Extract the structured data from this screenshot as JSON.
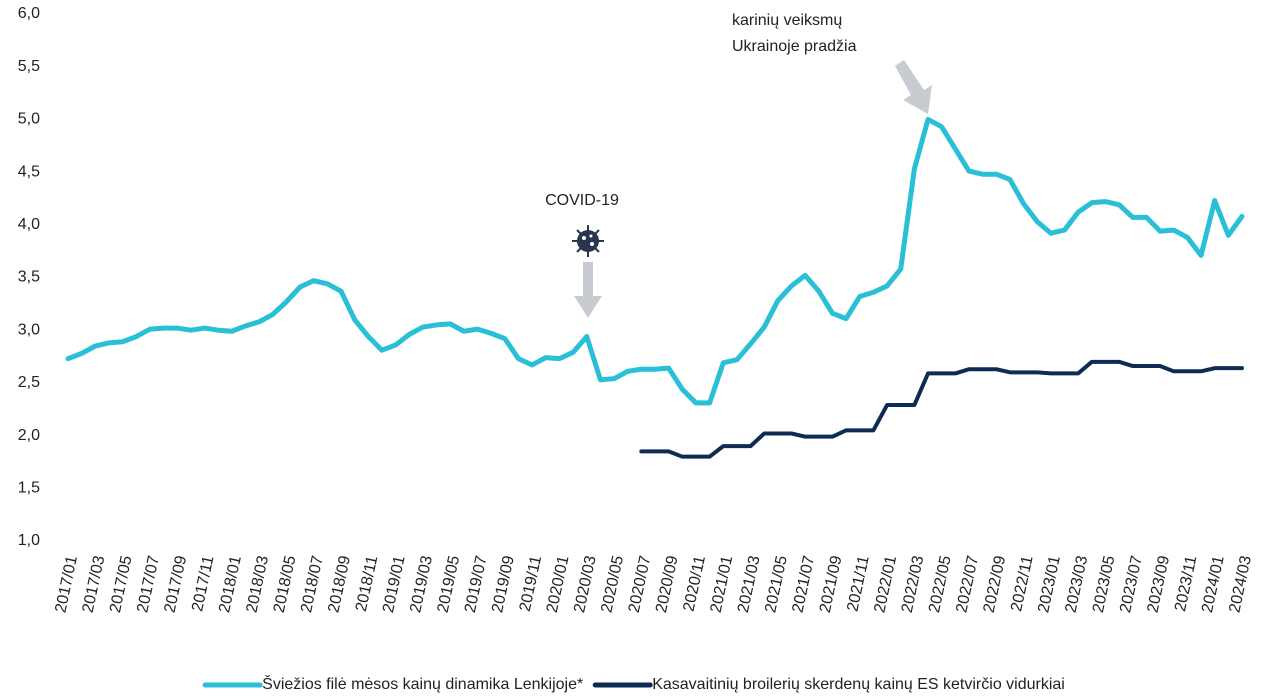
{
  "chart_data": {
    "type": "line",
    "categories": [
      "2017/01",
      null,
      "2017/03",
      null,
      "2017/05",
      null,
      "2017/07",
      null,
      "2017/09",
      null,
      "2017/11",
      null,
      "2018/01",
      null,
      "2018/03",
      null,
      "2018/05",
      null,
      "2018/07",
      null,
      "2018/09",
      null,
      "2018/11",
      null,
      "2019/01",
      null,
      "2019/03",
      null,
      "2019/05",
      null,
      "2019/07",
      null,
      "2019/09",
      null,
      "2019/11",
      null,
      "2020/01",
      null,
      "2020/03",
      null,
      "2020/05",
      null,
      "2020/07",
      null,
      "2020/09",
      null,
      "2020/11",
      null,
      "2021/01",
      null,
      "2021/03",
      null,
      "2021/05",
      null,
      "2021/07",
      null,
      "2021/09",
      null,
      "2021/11",
      null,
      "2022/01",
      null,
      "2022/03",
      null,
      "2022/05",
      null,
      "2022/07",
      null,
      "2022/09",
      null,
      "2022/11",
      null,
      "2023/01",
      null,
      "2023/03",
      null,
      "2023/05",
      null,
      "2023/07",
      null,
      "2023/09",
      null,
      "2023/11",
      null,
      "2024/01",
      null,
      "2024/03"
    ],
    "series": [
      {
        "name": "Šviežios filė mėsos kainų dinamika Lenkijoje*",
        "color": "#29bfd6",
        "values": [
          2.73,
          2.78,
          2.85,
          2.88,
          2.89,
          2.94,
          3.01,
          3.02,
          3.02,
          3.0,
          3.02,
          3.0,
          2.99,
          3.04,
          3.08,
          3.15,
          3.27,
          3.41,
          3.47,
          3.44,
          3.37,
          3.1,
          2.94,
          2.81,
          2.86,
          2.96,
          3.03,
          3.05,
          3.06,
          2.99,
          3.01,
          2.97,
          2.92,
          2.73,
          2.67,
          2.74,
          2.73,
          2.79,
          2.94,
          2.53,
          2.54,
          2.61,
          2.63,
          2.63,
          2.64,
          2.44,
          2.31,
          2.31,
          2.69,
          2.72,
          2.87,
          3.03,
          3.28,
          3.42,
          3.52,
          3.37,
          3.16,
          3.11,
          3.32,
          3.36,
          3.42,
          3.58,
          4.53,
          5.0,
          4.93,
          4.72,
          4.51,
          4.48,
          4.48,
          4.43,
          4.2,
          4.03,
          3.92,
          3.95,
          4.12,
          4.21,
          4.22,
          4.19,
          4.07,
          4.07,
          3.94,
          3.95,
          3.88,
          3.71,
          4.23,
          3.9,
          4.08
        ]
      },
      {
        "name": "Kasavaitinių broilerių skerdenų kainų ES ketvirčio vidurkiai",
        "color": "#0d2c54",
        "values": [
          null,
          null,
          null,
          null,
          null,
          null,
          null,
          null,
          null,
          null,
          null,
          null,
          null,
          null,
          null,
          null,
          null,
          null,
          null,
          null,
          null,
          null,
          null,
          null,
          null,
          null,
          null,
          null,
          null,
          null,
          null,
          null,
          null,
          null,
          null,
          null,
          null,
          null,
          null,
          null,
          null,
          null,
          1.85,
          1.85,
          1.85,
          1.8,
          1.8,
          1.8,
          1.9,
          1.9,
          1.9,
          2.02,
          2.02,
          2.02,
          1.99,
          1.99,
          1.99,
          2.05,
          2.05,
          2.05,
          2.29,
          2.29,
          2.29,
          2.59,
          2.59,
          2.59,
          2.63,
          2.63,
          2.63,
          2.6,
          2.6,
          2.6,
          2.59,
          2.59,
          2.59,
          2.7,
          2.7,
          2.7,
          2.66,
          2.66,
          2.66,
          2.61,
          2.61,
          2.61,
          2.64,
          2.64,
          2.64
        ]
      }
    ],
    "ylim": [
      1,
      6
    ],
    "yticks": [
      {
        "value": 1,
        "label": "1,0"
      },
      {
        "value": 1.5,
        "label": "1,5"
      },
      {
        "value": 2,
        "label": "2,0"
      },
      {
        "value": 2.5,
        "label": "2,5"
      },
      {
        "value": 3,
        "label": "3,0"
      },
      {
        "value": 3.5,
        "label": "3,5"
      },
      {
        "value": 4,
        "label": "4,0"
      },
      {
        "value": 4.5,
        "label": "4,5"
      },
      {
        "value": 5,
        "label": "5,0"
      },
      {
        "value": 5.5,
        "label": "5,5"
      },
      {
        "value": 6,
        "label": "6,0"
      }
    ],
    "grid": false,
    "legend": "bottom",
    "annotations": [
      {
        "lines": [
          "COVID-19"
        ]
      },
      {
        "lines": [
          "karinių veiksmų",
          "Ukrainoje pradžia"
        ]
      }
    ]
  }
}
